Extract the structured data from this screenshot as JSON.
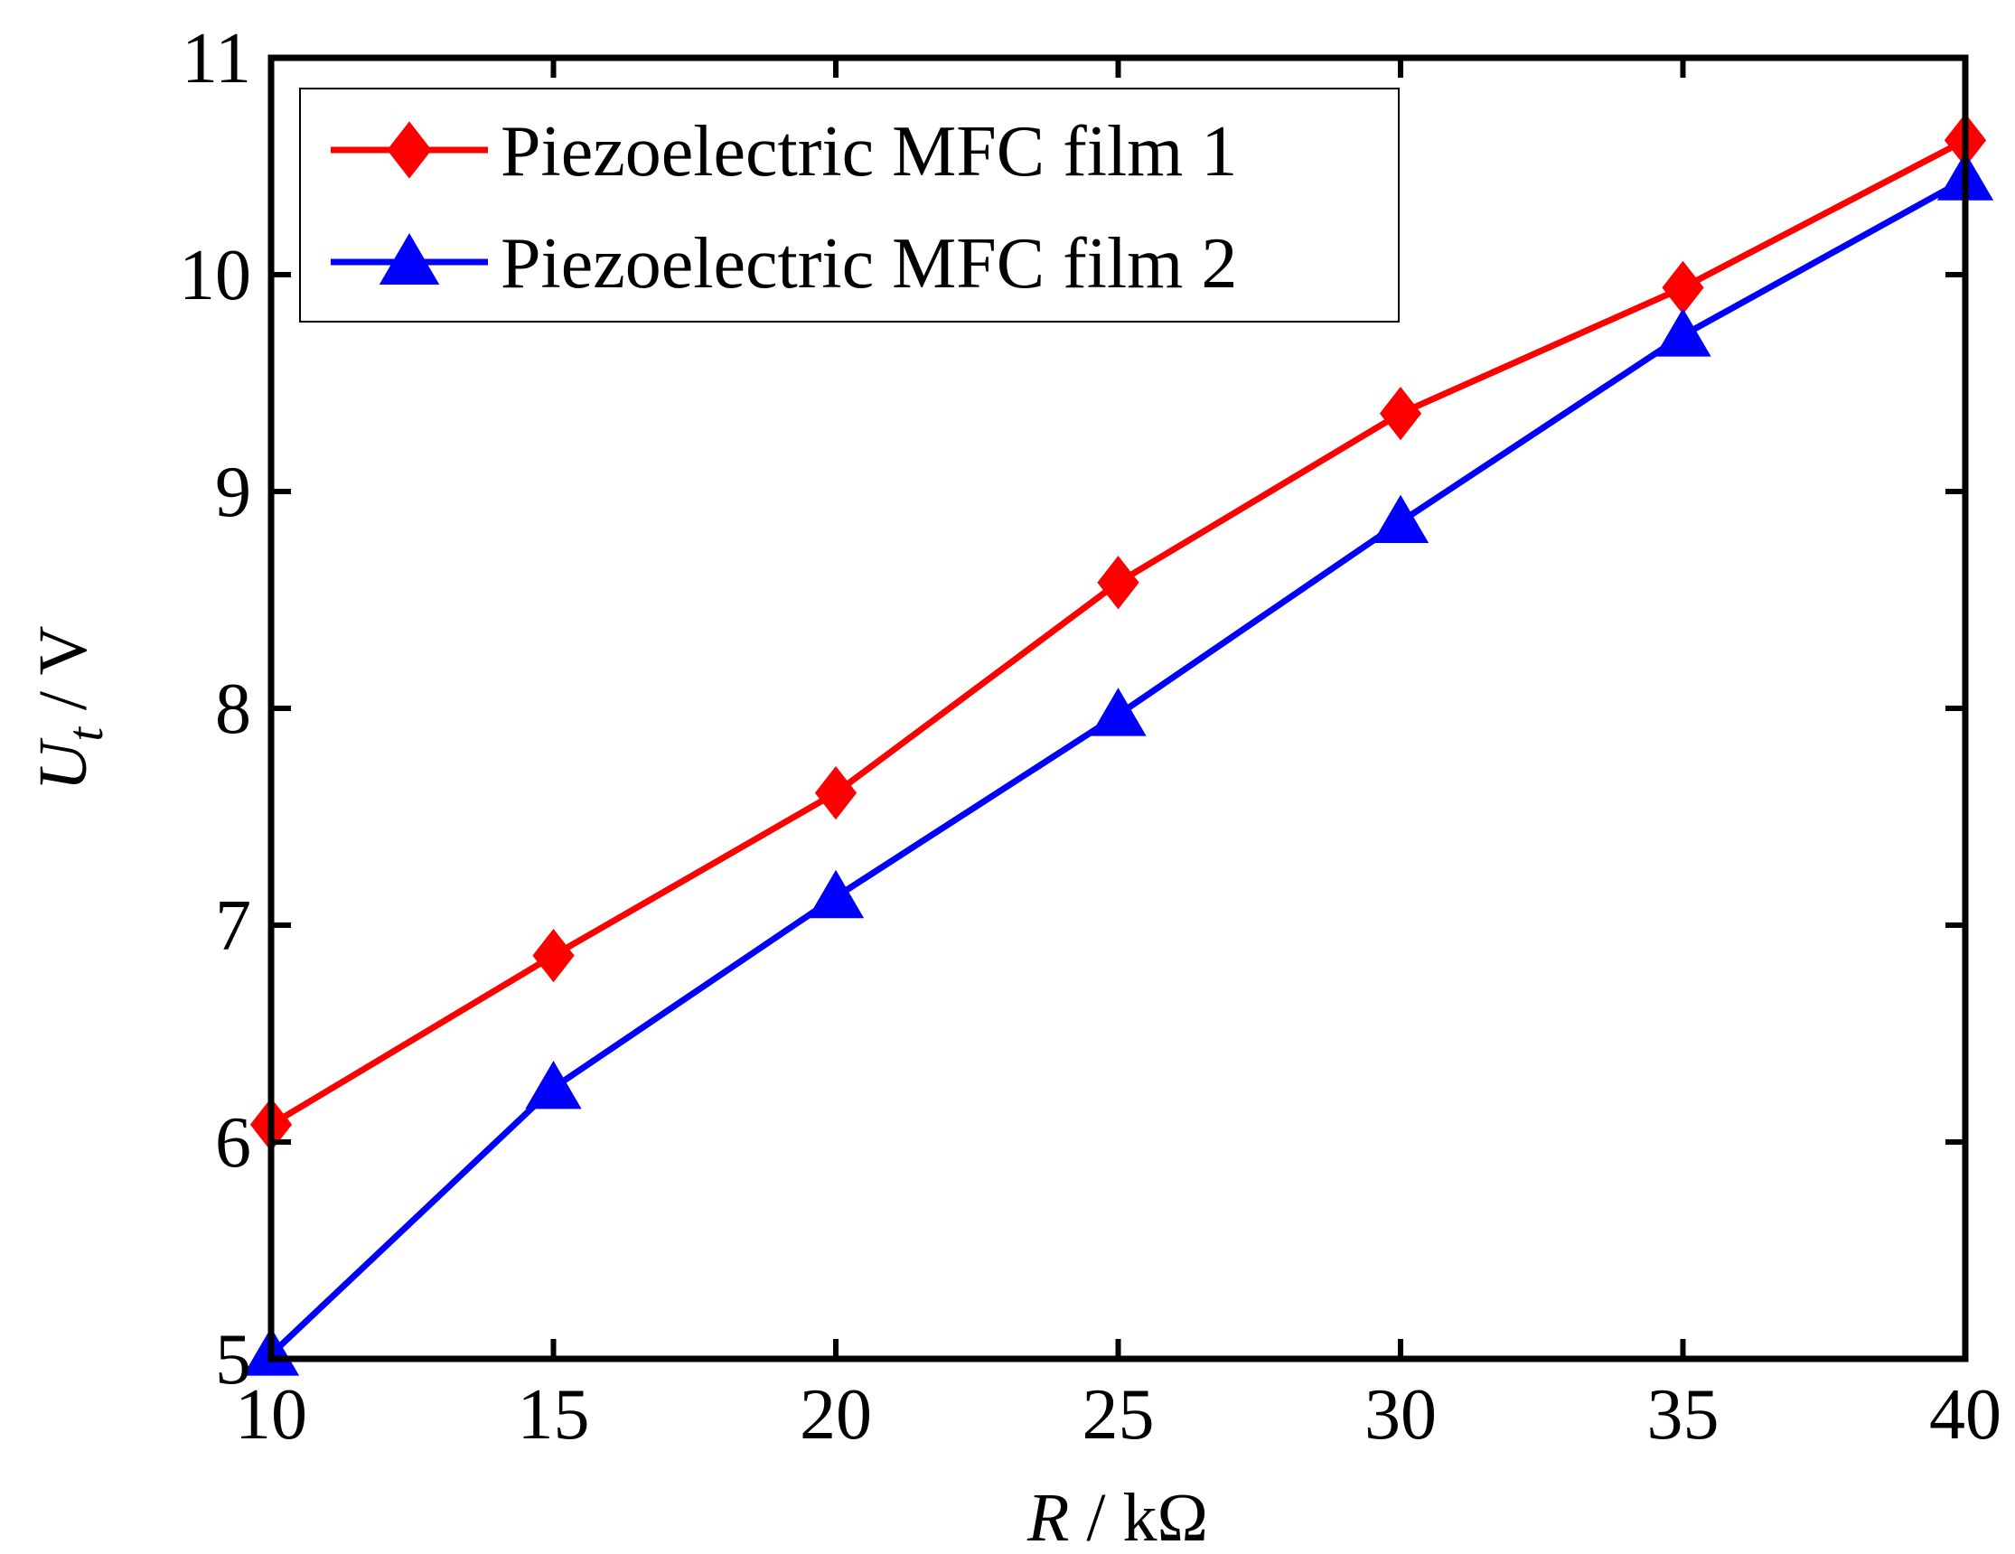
{
  "chart_data": {
    "type": "line",
    "title": "",
    "xlabel": {
      "var": "R",
      "unit": " / kΩ"
    },
    "ylabel": {
      "var": "U",
      "sub": "t",
      "unit": " / V"
    },
    "xlim": [
      10,
      40
    ],
    "ylim": [
      5,
      11
    ],
    "xticks": [
      10,
      15,
      20,
      25,
      30,
      35,
      40
    ],
    "yticks": [
      5,
      6,
      7,
      8,
      9,
      10,
      11
    ],
    "grid": false,
    "legend_position": "top-left",
    "x": [
      10,
      15,
      20,
      25,
      30,
      35,
      40
    ],
    "series": [
      {
        "name": "Piezoelectric MFC film 1",
        "color": "#ff0000",
        "marker": "diamond",
        "values": [
          6.08,
          6.86,
          7.61,
          8.58,
          9.36,
          9.94,
          10.62
        ]
      },
      {
        "name": "Piezoelectric MFC film 2",
        "color": "#0000ff",
        "marker": "triangle",
        "values": [
          5.02,
          6.25,
          7.13,
          7.97,
          8.86,
          9.72,
          10.44
        ]
      }
    ]
  }
}
